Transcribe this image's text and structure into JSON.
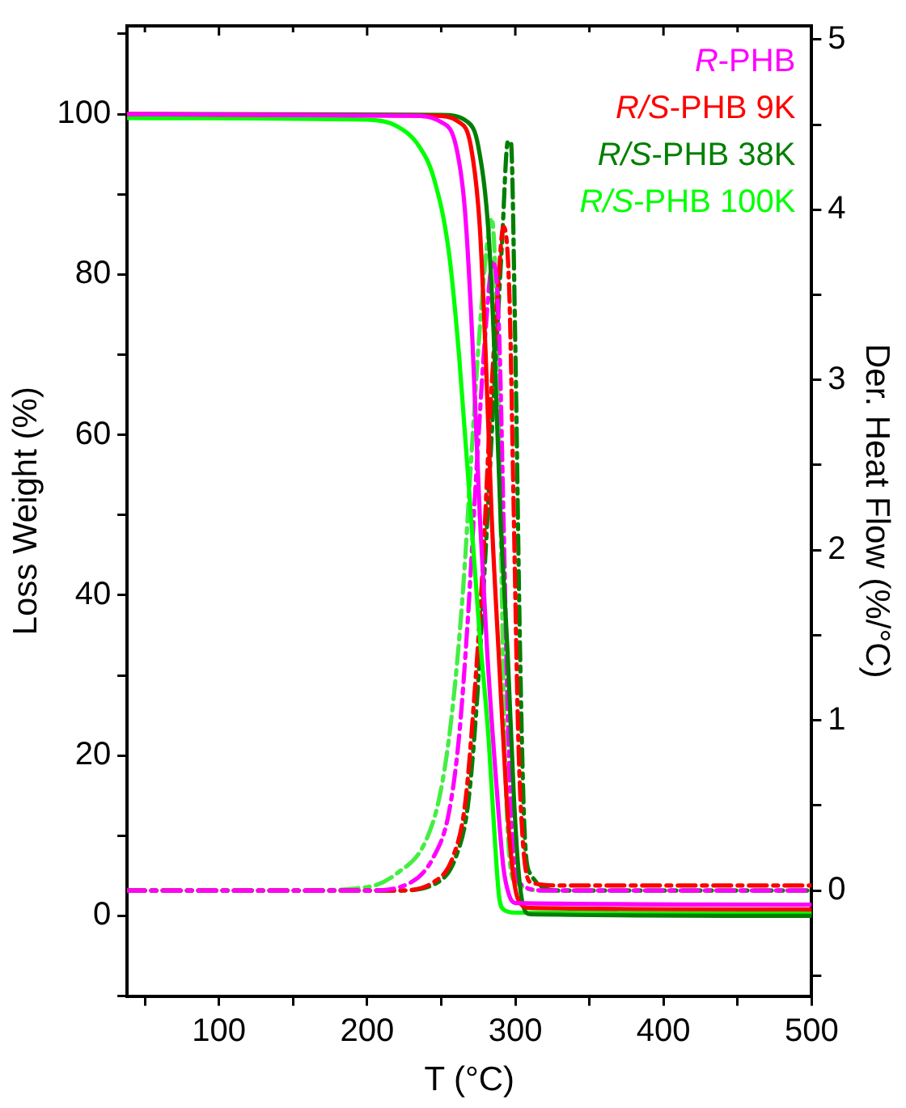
{
  "chart_data": {
    "type": "line",
    "xlabel": "T (°C)",
    "ylabel": "Loss Weight (%)",
    "y2label": "Der. Heat Flow (%/°C)",
    "xlim": [
      38,
      500
    ],
    "xticks": [
      {
        "value": 50,
        "label": null
      },
      100,
      {
        "value": 150,
        "label": null
      },
      200,
      {
        "value": 250,
        "label": null
      },
      300,
      {
        "value": 350,
        "label": null
      },
      400,
      {
        "value": 450,
        "label": null
      },
      500
    ],
    "ylim": [
      -10,
      111
    ],
    "yticks": [
      {
        "value": -10,
        "label": null
      },
      0,
      {
        "value": 10,
        "label": null
      },
      20,
      {
        "value": 30,
        "label": null
      },
      40,
      {
        "value": 50,
        "label": null
      },
      60,
      {
        "value": 70,
        "label": null
      },
      80,
      {
        "value": 90,
        "label": null
      },
      100,
      {
        "value": 110,
        "label": null
      }
    ],
    "y2lim": [
      -0.62,
      5.08
    ],
    "y2ticks": [
      {
        "value": -0.5,
        "label": null
      },
      0,
      {
        "value": 0.5,
        "label": null
      },
      1,
      {
        "value": 1.5,
        "label": null
      },
      2,
      {
        "value": 2.5,
        "label": null
      },
      3,
      {
        "value": 3.5,
        "label": null
      },
      4,
      {
        "value": 4.5,
        "label": null
      },
      5
    ],
    "grid": false,
    "legend": "top right",
    "marker": "none",
    "series": [
      {
        "name": "R-PHB",
        "color": "#ff00ff",
        "line_style": "solid",
        "x": [
          38,
          230,
          250,
          260,
          266,
          271,
          276,
          281,
          287,
          292,
          296,
          300,
          500
        ],
        "values": [
          100,
          99.8,
          99,
          96,
          88,
          72,
          50,
          33,
          17,
          6,
          2.5,
          1.6,
          1.4
        ]
      },
      {
        "name": "R/S-PHB 9K",
        "color": "#ff0000",
        "line_style": "solid",
        "x": [
          38,
          245,
          262,
          270,
          276,
          280,
          284,
          289,
          294,
          298,
          302,
          310,
          500
        ],
        "values": [
          100,
          99.8,
          99,
          96,
          86,
          70,
          50,
          32,
          15,
          6,
          2,
          1,
          0.8
        ]
      },
      {
        "name": "R/S-PHB 38K",
        "color": "#007f00",
        "line_style": "solid",
        "x": [
          38,
          250,
          268,
          275,
          282,
          286,
          290,
          295,
          299,
          302,
          305,
          310,
          500
        ],
        "values": [
          100,
          99.9,
          99,
          96,
          85,
          70,
          50,
          32,
          15,
          6,
          1.5,
          0.2,
          0
        ]
      },
      {
        "name": "R/S-PHB 100K",
        "color": "#00ff00",
        "line_style": "solid",
        "x": [
          38,
          200,
          220,
          235,
          245,
          255,
          262,
          270,
          276,
          282,
          286,
          289,
          292,
          300,
          500
        ],
        "values": [
          99.5,
          99.3,
          98.5,
          96,
          92,
          83,
          70,
          50,
          35,
          22,
          10,
          2.5,
          0.8,
          0.4,
          0.3
        ]
      },
      {
        "color": "#ff00ff",
        "line_style": "dashed",
        "axis": "y2",
        "x": [
          38,
          200,
          230,
          245,
          255,
          262,
          268,
          274,
          280,
          285,
          289,
          292,
          295,
          298,
          302,
          320,
          500
        ],
        "values": [
          0,
          0,
          0.05,
          0.2,
          0.45,
          0.9,
          1.6,
          2.5,
          3.3,
          3.7,
          3.3,
          2.2,
          1,
          0.3,
          0.05,
          0,
          0
        ]
      },
      {
        "color": "#ff0000",
        "line_style": "dashed",
        "axis": "y2",
        "x": [
          38,
          220,
          245,
          258,
          266,
          272,
          278,
          283,
          288,
          292,
          296,
          299,
          302,
          305,
          310,
          330,
          500
        ],
        "values": [
          0,
          0,
          0.05,
          0.2,
          0.5,
          1.1,
          1.9,
          2.8,
          3.5,
          3.9,
          3.5,
          2.2,
          0.9,
          0.3,
          0.05,
          0.03,
          0.03
        ]
      },
      {
        "color": "#007f00",
        "line_style": "dashed",
        "axis": "y2",
        "x": [
          38,
          220,
          248,
          260,
          268,
          274,
          280,
          286,
          291,
          295,
          297,
          300,
          303,
          306,
          310,
          330,
          500
        ],
        "values": [
          0,
          0,
          0.05,
          0.2,
          0.5,
          1.1,
          2,
          3,
          3.8,
          4.4,
          4.4,
          3.2,
          1.5,
          0.4,
          0.1,
          0,
          0
        ]
      },
      {
        "color": "#44ee44",
        "line_style": "dashed",
        "axis": "y2",
        "x": [
          38,
          150,
          200,
          220,
          240,
          250,
          258,
          265,
          270,
          276,
          281,
          284,
          287,
          290,
          293,
          296,
          300,
          320,
          500
        ],
        "values": [
          0,
          0,
          0.02,
          0.1,
          0.3,
          0.6,
          1.1,
          1.8,
          2.5,
          3.3,
          3.8,
          3.95,
          3.5,
          2.2,
          0.8,
          0.2,
          0.05,
          0,
          0
        ]
      }
    ]
  }
}
